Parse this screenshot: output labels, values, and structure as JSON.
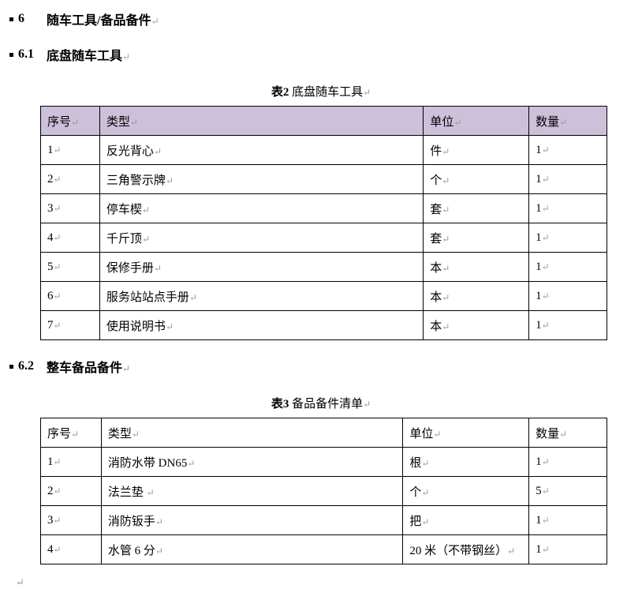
{
  "headings": {
    "h6_num": "6",
    "h6_text": "随车工具/备品备件",
    "h61_num": "6.1",
    "h61_text": "底盘随车工具",
    "h62_num": "6.2",
    "h62_text": "整车备品备件"
  },
  "table2": {
    "caption_label": "表2",
    "caption_text": "底盘随车工具",
    "header": [
      "序号",
      "类型",
      "单位",
      "数量"
    ],
    "header_bg": "#ccc0da",
    "rows": [
      [
        "1",
        "反光背心",
        "件",
        "1"
      ],
      [
        "2",
        "三角警示牌",
        "个",
        "1"
      ],
      [
        "3",
        "停车楔",
        "套",
        "1"
      ],
      [
        "4",
        "千斤顶",
        "套",
        "1"
      ],
      [
        "5",
        "保修手册",
        "本",
        "1"
      ],
      [
        "6",
        "服务站站点手册",
        "本",
        "1"
      ],
      [
        "7",
        "使用说明书",
        "本",
        "1"
      ]
    ]
  },
  "table3": {
    "caption_label": "表3",
    "caption_text": "备品备件清单",
    "header": [
      "序号",
      "类型",
      "单位",
      "数量"
    ],
    "rows": [
      [
        "1",
        "消防水带 DN65",
        "根",
        "1"
      ],
      [
        "2",
        "法兰垫 ",
        "个",
        "5"
      ],
      [
        "3",
        "消防钣手",
        "把",
        "1"
      ],
      [
        "4",
        "水管 6 分",
        "20 米（不带钢丝）",
        "1"
      ]
    ]
  }
}
